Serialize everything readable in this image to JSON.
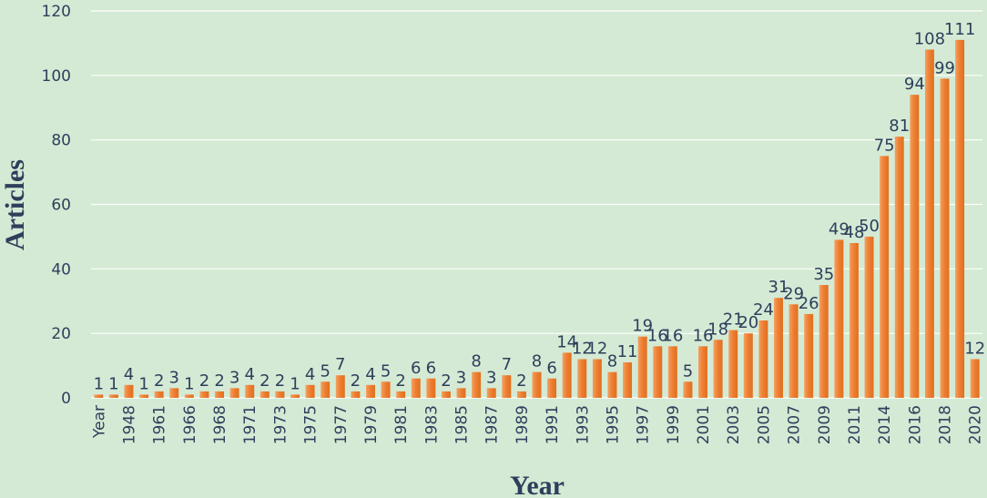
{
  "chart_data": {
    "type": "bar",
    "x_label": "Year",
    "y_label": "Articles",
    "categories": [
      "Year",
      null,
      "1948",
      null,
      "1961",
      null,
      "1966",
      null,
      "1968",
      null,
      "1971",
      null,
      "1973",
      null,
      "1975",
      null,
      "1977",
      null,
      "1979",
      null,
      "1981",
      null,
      "1983",
      null,
      "1985",
      null,
      "1987",
      null,
      "1989",
      null,
      "1991",
      null,
      "1993",
      null,
      "1995",
      null,
      "1997",
      null,
      "1999",
      null,
      "2001",
      null,
      "2003",
      null,
      "2005",
      null,
      "2007",
      null,
      "2009",
      null,
      "2011",
      null,
      "2014",
      null,
      "2016",
      null,
      "2018",
      null,
      "2020"
    ],
    "values": [
      1,
      1,
      4,
      1,
      2,
      3,
      1,
      2,
      2,
      3,
      4,
      2,
      2,
      1,
      4,
      5,
      7,
      2,
      4,
      5,
      2,
      6,
      6,
      2,
      3,
      8,
      3,
      7,
      2,
      8,
      6,
      14,
      12,
      12,
      8,
      11,
      19,
      16,
      16,
      5,
      16,
      18,
      21,
      20,
      24,
      31,
      29,
      26,
      35,
      49,
      48,
      50,
      75,
      81,
      94,
      108,
      99,
      111,
      12
    ],
    "color": "#ed7d31",
    "ylim": [
      0,
      120
    ],
    "yticks": [
      0,
      20,
      40,
      60,
      80,
      100,
      120
    ],
    "grid": true
  }
}
